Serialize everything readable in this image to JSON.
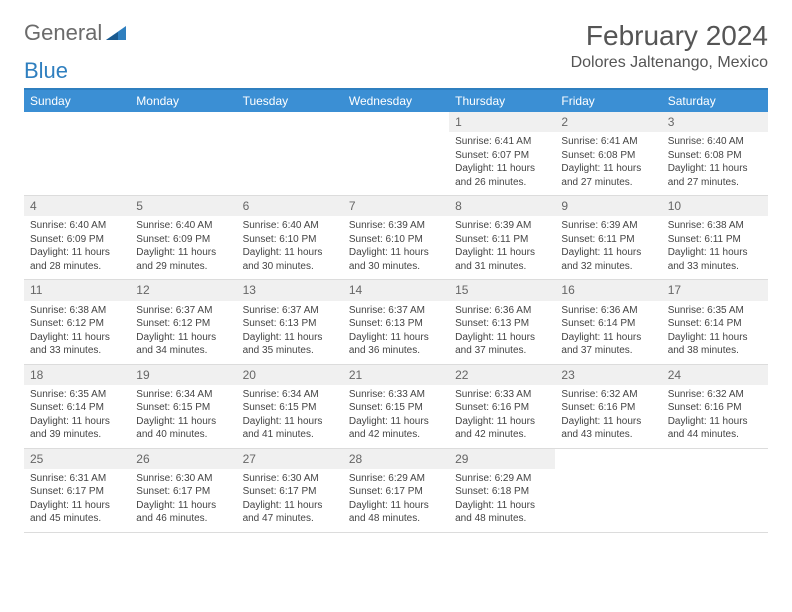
{
  "logo": {
    "part1": "General",
    "part2": "Blue"
  },
  "title": "February 2024",
  "location": "Dolores Jaltenango, Mexico",
  "colors": {
    "header_bg": "#3b8fd4",
    "header_border": "#2f7fbf",
    "daynum_bg": "#f0f0f0",
    "text": "#444444",
    "logo_gray": "#6b6b6b",
    "logo_blue": "#2f7fbf"
  },
  "weekdays": [
    "Sunday",
    "Monday",
    "Tuesday",
    "Wednesday",
    "Thursday",
    "Friday",
    "Saturday"
  ],
  "weeks": [
    [
      null,
      null,
      null,
      null,
      {
        "n": "1",
        "sr": "6:41 AM",
        "ss": "6:07 PM",
        "dl": "11 hours and 26 minutes."
      },
      {
        "n": "2",
        "sr": "6:41 AM",
        "ss": "6:08 PM",
        "dl": "11 hours and 27 minutes."
      },
      {
        "n": "3",
        "sr": "6:40 AM",
        "ss": "6:08 PM",
        "dl": "11 hours and 27 minutes."
      }
    ],
    [
      {
        "n": "4",
        "sr": "6:40 AM",
        "ss": "6:09 PM",
        "dl": "11 hours and 28 minutes."
      },
      {
        "n": "5",
        "sr": "6:40 AM",
        "ss": "6:09 PM",
        "dl": "11 hours and 29 minutes."
      },
      {
        "n": "6",
        "sr": "6:40 AM",
        "ss": "6:10 PM",
        "dl": "11 hours and 30 minutes."
      },
      {
        "n": "7",
        "sr": "6:39 AM",
        "ss": "6:10 PM",
        "dl": "11 hours and 30 minutes."
      },
      {
        "n": "8",
        "sr": "6:39 AM",
        "ss": "6:11 PM",
        "dl": "11 hours and 31 minutes."
      },
      {
        "n": "9",
        "sr": "6:39 AM",
        "ss": "6:11 PM",
        "dl": "11 hours and 32 minutes."
      },
      {
        "n": "10",
        "sr": "6:38 AM",
        "ss": "6:11 PM",
        "dl": "11 hours and 33 minutes."
      }
    ],
    [
      {
        "n": "11",
        "sr": "6:38 AM",
        "ss": "6:12 PM",
        "dl": "11 hours and 33 minutes."
      },
      {
        "n": "12",
        "sr": "6:37 AM",
        "ss": "6:12 PM",
        "dl": "11 hours and 34 minutes."
      },
      {
        "n": "13",
        "sr": "6:37 AM",
        "ss": "6:13 PM",
        "dl": "11 hours and 35 minutes."
      },
      {
        "n": "14",
        "sr": "6:37 AM",
        "ss": "6:13 PM",
        "dl": "11 hours and 36 minutes."
      },
      {
        "n": "15",
        "sr": "6:36 AM",
        "ss": "6:13 PM",
        "dl": "11 hours and 37 minutes."
      },
      {
        "n": "16",
        "sr": "6:36 AM",
        "ss": "6:14 PM",
        "dl": "11 hours and 37 minutes."
      },
      {
        "n": "17",
        "sr": "6:35 AM",
        "ss": "6:14 PM",
        "dl": "11 hours and 38 minutes."
      }
    ],
    [
      {
        "n": "18",
        "sr": "6:35 AM",
        "ss": "6:14 PM",
        "dl": "11 hours and 39 minutes."
      },
      {
        "n": "19",
        "sr": "6:34 AM",
        "ss": "6:15 PM",
        "dl": "11 hours and 40 minutes."
      },
      {
        "n": "20",
        "sr": "6:34 AM",
        "ss": "6:15 PM",
        "dl": "11 hours and 41 minutes."
      },
      {
        "n": "21",
        "sr": "6:33 AM",
        "ss": "6:15 PM",
        "dl": "11 hours and 42 minutes."
      },
      {
        "n": "22",
        "sr": "6:33 AM",
        "ss": "6:16 PM",
        "dl": "11 hours and 42 minutes."
      },
      {
        "n": "23",
        "sr": "6:32 AM",
        "ss": "6:16 PM",
        "dl": "11 hours and 43 minutes."
      },
      {
        "n": "24",
        "sr": "6:32 AM",
        "ss": "6:16 PM",
        "dl": "11 hours and 44 minutes."
      }
    ],
    [
      {
        "n": "25",
        "sr": "6:31 AM",
        "ss": "6:17 PM",
        "dl": "11 hours and 45 minutes."
      },
      {
        "n": "26",
        "sr": "6:30 AM",
        "ss": "6:17 PM",
        "dl": "11 hours and 46 minutes."
      },
      {
        "n": "27",
        "sr": "6:30 AM",
        "ss": "6:17 PM",
        "dl": "11 hours and 47 minutes."
      },
      {
        "n": "28",
        "sr": "6:29 AM",
        "ss": "6:17 PM",
        "dl": "11 hours and 48 minutes."
      },
      {
        "n": "29",
        "sr": "6:29 AM",
        "ss": "6:18 PM",
        "dl": "11 hours and 48 minutes."
      },
      null,
      null
    ]
  ],
  "labels": {
    "sunrise": "Sunrise:",
    "sunset": "Sunset:",
    "daylight": "Daylight:"
  }
}
